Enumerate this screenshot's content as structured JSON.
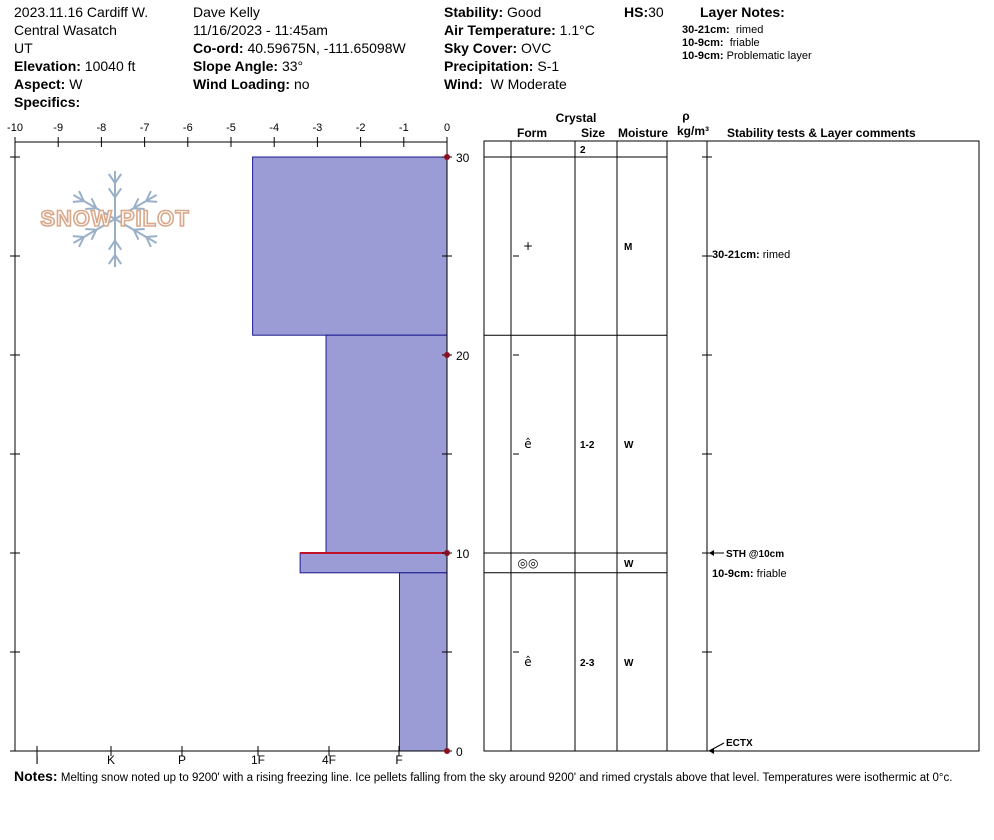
{
  "header": {
    "col1": {
      "title": "2023.11.16 Cardiff W.",
      "range": "Central Wasatch",
      "state": "UT",
      "elevation_label": "Elevation:",
      "elevation": "10040 ft",
      "aspect_label": "Aspect:",
      "aspect": "W",
      "specifics_label": "Specifics:"
    },
    "col2": {
      "observer": "Dave Kelly",
      "datetime": "11/16/2023 - 11:45am",
      "coord_label": "Co-ord:",
      "coord": "40.59675N, -111.65098W",
      "slope_label": "Slope Angle:",
      "slope": "33°",
      "wind_loading_label": "Wind Loading:",
      "wind_loading": "no"
    },
    "col3": {
      "stability_label": "Stability:",
      "stability": "Good",
      "air_temp_label": "Air Temperature:",
      "air_temp": "1.1°C",
      "sky_label": "Sky Cover:",
      "sky": "OVC",
      "precip_label": "Precipitation:",
      "precip": "S-1",
      "wind_label": "Wind:",
      "wind": "W Moderate"
    },
    "hs_label": "HS:",
    "hs": "30",
    "layer_notes_title": "Layer Notes:",
    "layer_notes": [
      {
        "range": "30-21cm:",
        "text": "rimed"
      },
      {
        "range": "10-9cm:",
        "text": "friable"
      },
      {
        "range": "10-9cm:",
        "text": "Problematic layer"
      }
    ]
  },
  "logo_text": "SNOW PILOT",
  "notes": {
    "label": "Notes:",
    "text": "Melting snow noted up to 9200' with a rising freezing line. Ice pellets falling from the sky around 9200' and rimed crystals above that level. Temperatures were isothermic at 0°c."
  },
  "chart_data": {
    "type": "snow-profile",
    "top_axis_ticks": [
      "-10",
      "-9",
      "-8",
      "-7",
      "-6",
      "-5",
      "-4",
      "-3",
      "-2",
      "-1",
      "0"
    ],
    "bottom_axis_ticks": [
      "I",
      "K",
      "P",
      "1F",
      "4F",
      "F"
    ],
    "depth_ticks": [
      "30",
      "20",
      "10",
      "0"
    ],
    "depth_range": [
      0,
      30
    ],
    "hardness_layers": [
      {
        "from_cm": 21,
        "to_cm": 30,
        "hardness_index": 4.5
      },
      {
        "from_cm": 10,
        "to_cm": 21,
        "hardness_index": 2.8
      },
      {
        "from_cm": 9,
        "to_cm": 10,
        "hardness_index": 3.4
      },
      {
        "from_cm": 0,
        "to_cm": 9,
        "hardness_index": 1.1
      }
    ],
    "problem_layer_cm": 10,
    "columns": {
      "crystal_header": "Crystal",
      "form_header": "Form",
      "size_header": "Size",
      "moisture_header": "Moisture",
      "rho_header": "ρ",
      "density_unit": "kg/m³",
      "comments_header": "Stability tests & Layer comments"
    },
    "layers": [
      {
        "top_cm": 30,
        "bottom_cm": 21,
        "form": "+",
        "size": "",
        "moisture": "M"
      },
      {
        "top_cm": 21,
        "bottom_cm": 10,
        "form": "ê",
        "size": "1-2",
        "moisture": "W"
      },
      {
        "top_cm": 10,
        "bottom_cm": 9,
        "form": "◎◎",
        "size": "",
        "moisture": "W"
      },
      {
        "top_cm": 9,
        "bottom_cm": 0,
        "form": "ê",
        "size": "2-3",
        "moisture": "W"
      }
    ],
    "surface_size": "2",
    "comments": [
      {
        "cm": 25.1,
        "range": "30-21cm:",
        "text": "rimed"
      },
      {
        "cm": 9.0,
        "range": "10-9cm:",
        "text": "friable"
      }
    ],
    "tests": [
      {
        "cm": 10,
        "text": "STH @10cm"
      },
      {
        "cm": 0,
        "text": "ECTX"
      }
    ]
  }
}
